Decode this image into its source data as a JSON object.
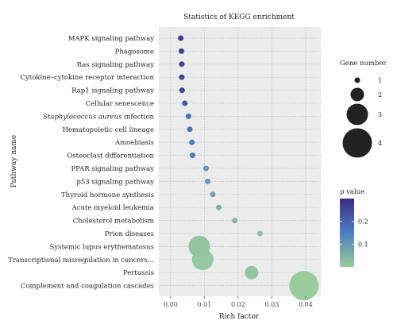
{
  "chart_data": {
    "type": "scatter",
    "title": "Statistics of KEGG enrichment",
    "xlabel": "Rich factor",
    "ylabel": "Pathway name",
    "xlim": [
      -0.0035,
      0.0445
    ],
    "xticks": [
      "0.00",
      "0.01",
      "0.02",
      "0.03",
      "0.04"
    ],
    "xtick_values": [
      0.0,
      0.01,
      0.02,
      0.03,
      0.04
    ],
    "grid": true,
    "categories": [
      "MAPK signaling pathway",
      "Phagosome",
      "Ras signaling pathway",
      "Cytokine–cytokine receptor interaction",
      "Rap1 signaling pathway",
      "Cellular senescence",
      "Staphylococcus aureus infection",
      "Hematopoietic cell lineage",
      "Amoebiasis",
      "Osteoclast differentiation",
      "PPAR signaling pathway",
      "p53 signaling pathway",
      "Thyroid hormone synthesis",
      "Acute myeloid leukemia",
      "Cholesterol metabolism",
      "Prion diseases",
      "Systemic lupus erythematosus",
      "Transcriptional misregulation in cancers...",
      "Pertussis",
      "Complement and coagulation cascades"
    ],
    "italic_prefix": {
      "Staphylococcus aureus infection": "Staphylococcus aureus"
    },
    "points": [
      {
        "pathway": "MAPK signaling pathway",
        "rich_factor": 0.003,
        "gene_number": 1,
        "p_value": 0.29
      },
      {
        "pathway": "Phagosome",
        "rich_factor": 0.0032,
        "gene_number": 1,
        "p_value": 0.285
      },
      {
        "pathway": "Ras signaling pathway",
        "rich_factor": 0.0033,
        "gene_number": 1,
        "p_value": 0.28
      },
      {
        "pathway": "Cytokine–cytokine receptor interaction",
        "rich_factor": 0.0033,
        "gene_number": 1,
        "p_value": 0.28
      },
      {
        "pathway": "Rap1 signaling pathway",
        "rich_factor": 0.0034,
        "gene_number": 1,
        "p_value": 0.275
      },
      {
        "pathway": "Cellular senescence",
        "rich_factor": 0.0042,
        "gene_number": 1,
        "p_value": 0.235
      },
      {
        "pathway": "Staphylococcus aureus infection",
        "rich_factor": 0.0053,
        "gene_number": 1,
        "p_value": 0.195
      },
      {
        "pathway": "Hematopoietic cell lineage",
        "rich_factor": 0.0057,
        "gene_number": 1,
        "p_value": 0.185
      },
      {
        "pathway": "Amoebiasis",
        "rich_factor": 0.0063,
        "gene_number": 1,
        "p_value": 0.17
      },
      {
        "pathway": "Osteoclast differentiation",
        "rich_factor": 0.0065,
        "gene_number": 1,
        "p_value": 0.165
      },
      {
        "pathway": "PPAR signaling pathway",
        "rich_factor": 0.0105,
        "gene_number": 1,
        "p_value": 0.11
      },
      {
        "pathway": "p53 signaling pathway",
        "rich_factor": 0.011,
        "gene_number": 1,
        "p_value": 0.105
      },
      {
        "pathway": "Thyroid hormone synthesis",
        "rich_factor": 0.0125,
        "gene_number": 1,
        "p_value": 0.09
      },
      {
        "pathway": "Acute myeloid leukemia",
        "rich_factor": 0.0143,
        "gene_number": 1,
        "p_value": 0.075
      },
      {
        "pathway": "Cholesterol metabolism",
        "rich_factor": 0.019,
        "gene_number": 1,
        "p_value": 0.045
      },
      {
        "pathway": "Prion diseases",
        "rich_factor": 0.0265,
        "gene_number": 1,
        "p_value": 0.03
      },
      {
        "pathway": "Systemic lupus erythematosus",
        "rich_factor": 0.0085,
        "gene_number": 3,
        "p_value": 0.015
      },
      {
        "pathway": "Transcriptional misregulation in cancers...",
        "rich_factor": 0.0095,
        "gene_number": 3,
        "p_value": 0.012
      },
      {
        "pathway": "Pertussis",
        "rich_factor": 0.024,
        "gene_number": 2,
        "p_value": 0.02
      },
      {
        "pathway": "Complement and coagulation cascades",
        "rich_factor": 0.0395,
        "gene_number": 4,
        "p_value": 0.005
      }
    ],
    "size_legend": {
      "title": "Gene number",
      "values": [
        1,
        2,
        3,
        4
      ],
      "labels": [
        "1",
        "2",
        "3",
        "4"
      ]
    },
    "color_legend": {
      "title_italic": "p",
      "title_rest": " value",
      "range": [
        0.0,
        0.3
      ],
      "tick_values": [
        0.2,
        0.1
      ],
      "tick_labels": [
        "0.2",
        "0.1"
      ],
      "low_color": "#98cc98",
      "mid_color": "#4b7fc4",
      "high_color": "#3a2e86"
    },
    "panel_color": "#ebebeb",
    "grid_color": "#bdbdbd"
  }
}
